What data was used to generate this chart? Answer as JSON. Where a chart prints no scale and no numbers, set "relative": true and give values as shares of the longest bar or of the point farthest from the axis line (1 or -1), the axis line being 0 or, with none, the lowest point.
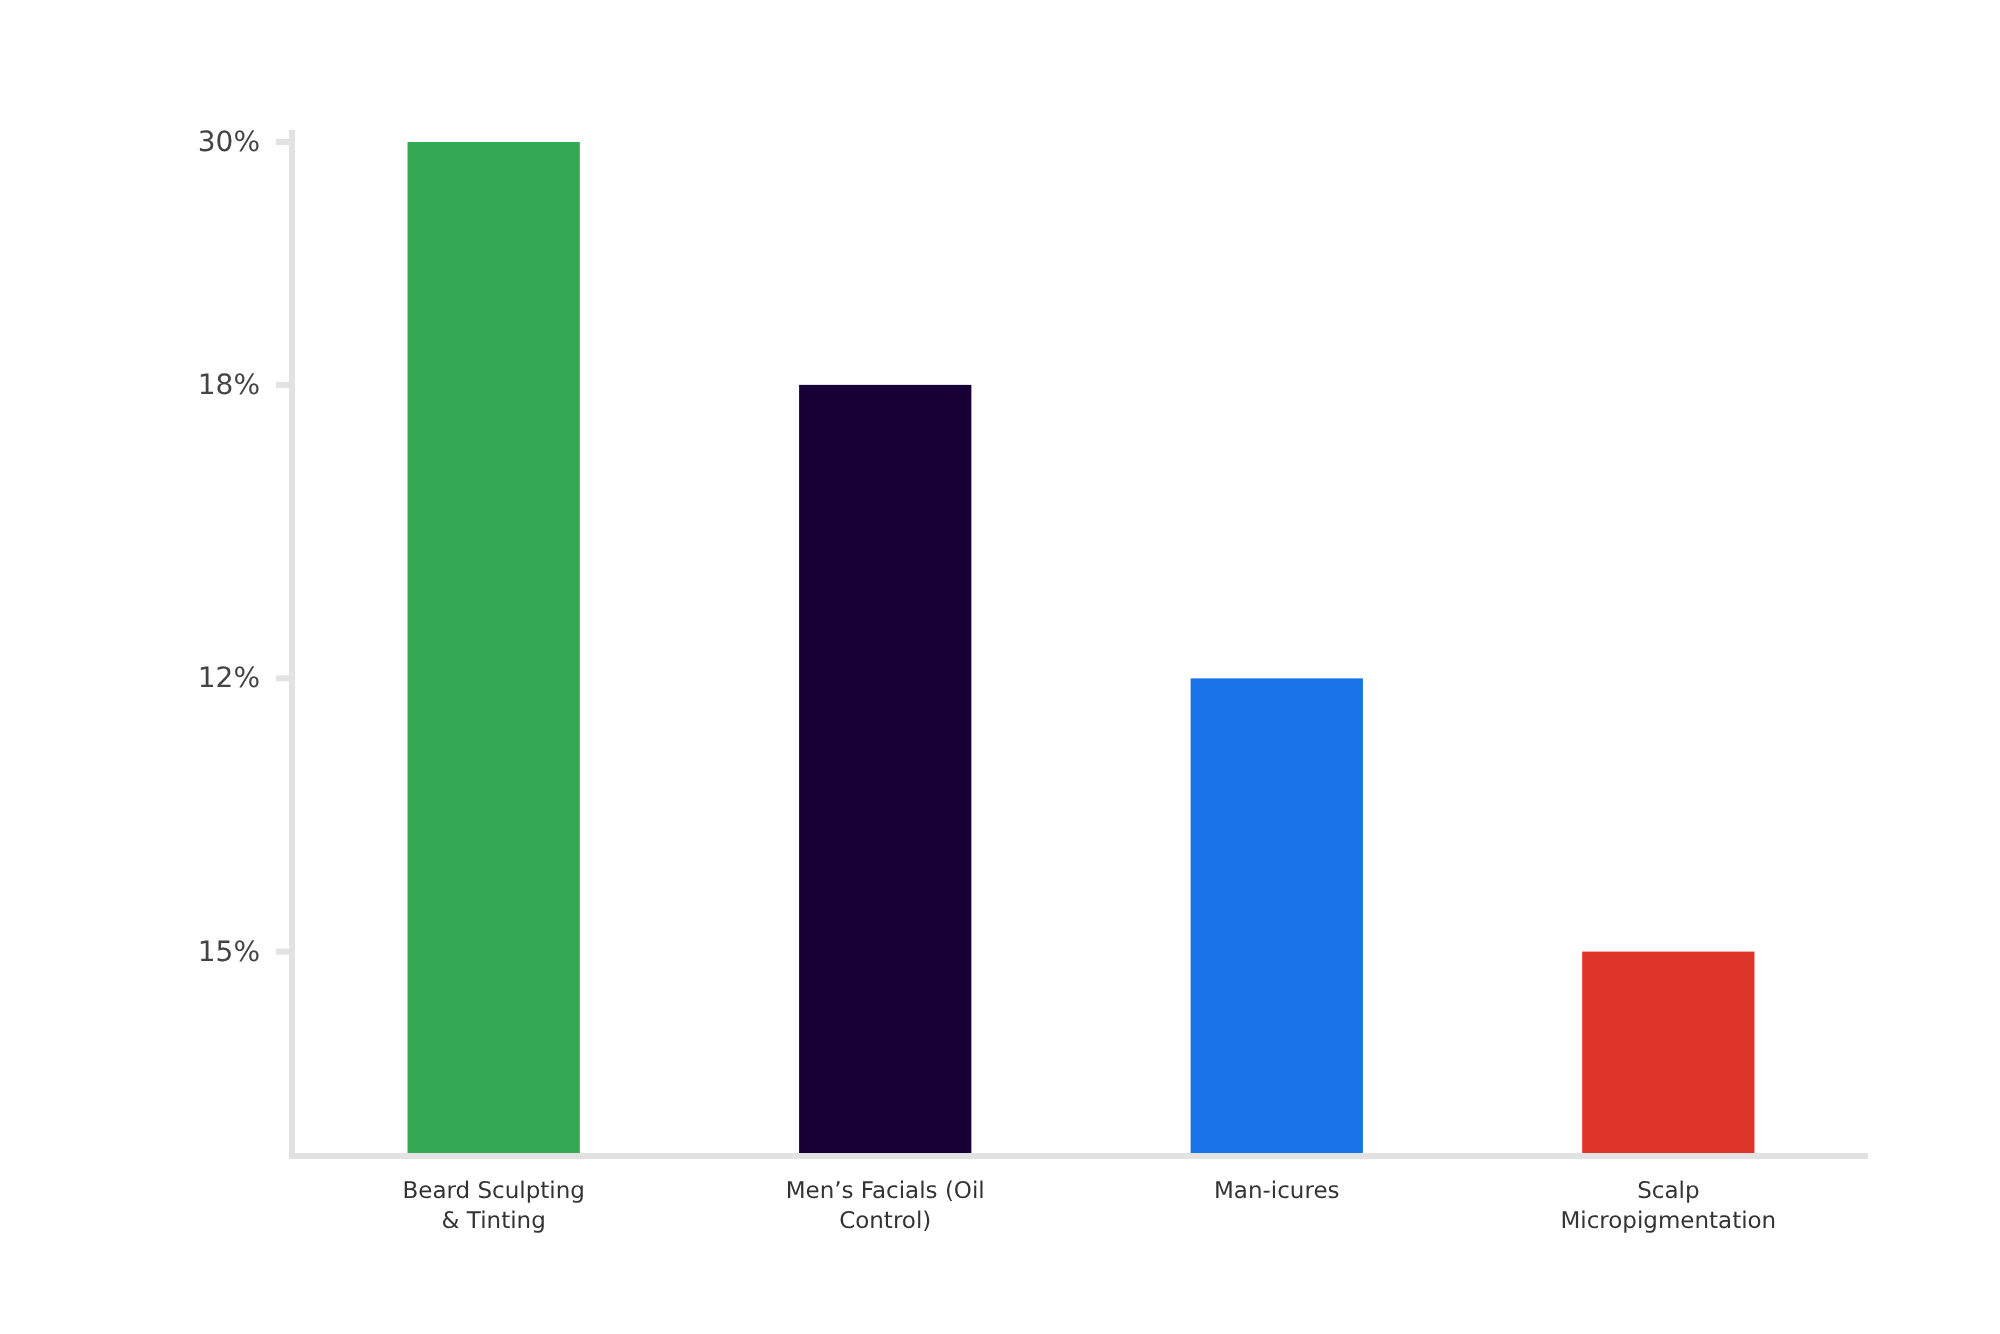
{
  "chart_data": {
    "type": "bar",
    "categories": [
      "Beard Sculpting & Tinting",
      "Men’s Facials (Oil Control)",
      "Man-icures",
      "Scalp Micropigmentation"
    ],
    "values": [
      1.0,
      0.76,
      0.47,
      0.2
    ],
    "colors": [
      "#34a853",
      "#170036",
      "#1a73e8",
      "#dd3529"
    ],
    "relative": true,
    "annotations": [
      "30%",
      "18%",
      "12%",
      "15%"
    ]
  }
}
